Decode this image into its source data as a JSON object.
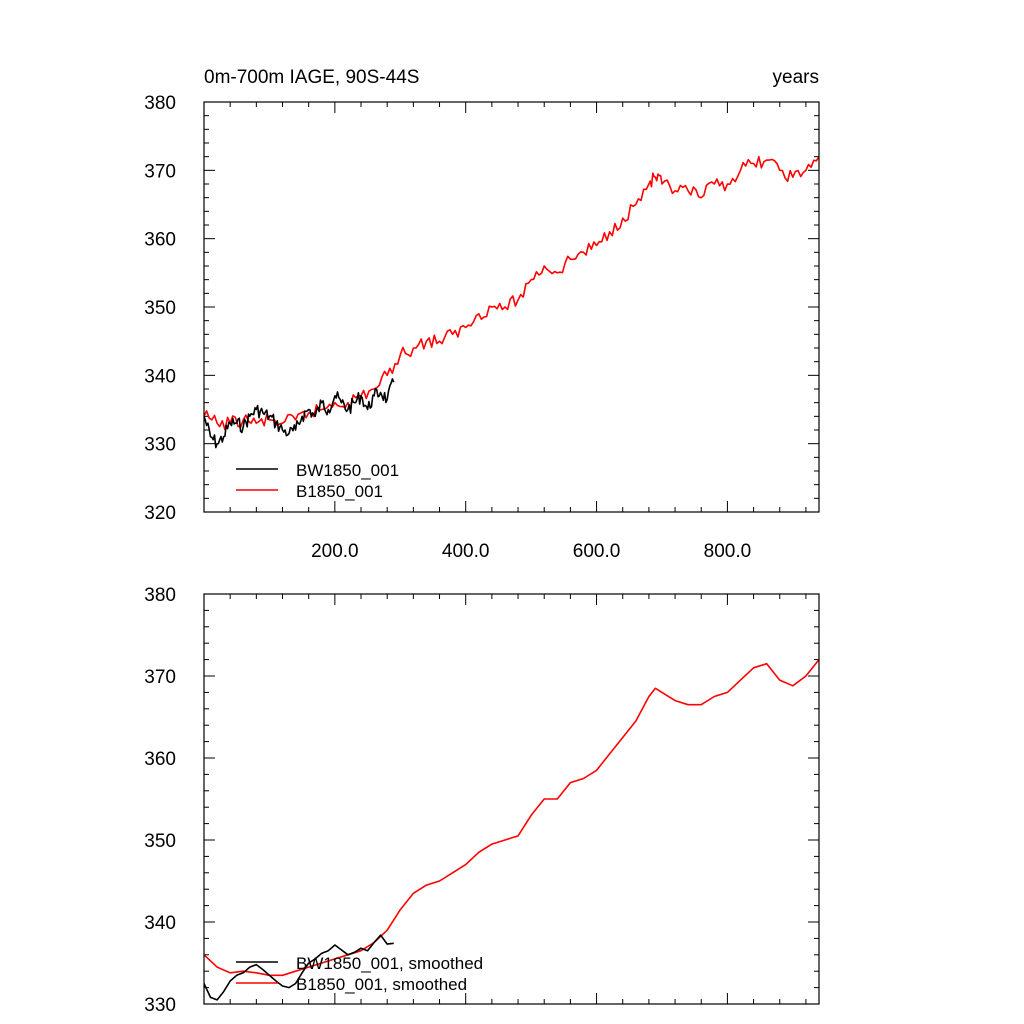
{
  "chart_data": [
    {
      "type": "line",
      "title_left": "0m-700m IAGE, 90S-44S",
      "title_right": "years",
      "xlim": [
        0,
        940
      ],
      "ylim": [
        320,
        380
      ],
      "x_ticks": [
        200,
        400,
        600,
        800
      ],
      "x_tick_labels": [
        "200.0",
        "400.0",
        "600.0",
        "800.0"
      ],
      "y_ticks": [
        320,
        330,
        340,
        350,
        360,
        370,
        380
      ],
      "y_tick_labels": [
        "320",
        "330",
        "340",
        "350",
        "360",
        "370",
        "380"
      ],
      "legend_position": "bottom-left",
      "series": [
        {
          "name": "BW1850_001",
          "color": "#000000",
          "x": [
            0,
            10,
            20,
            30,
            40,
            50,
            60,
            70,
            80,
            90,
            100,
            110,
            120,
            130,
            140,
            150,
            160,
            170,
            180,
            190,
            200,
            210,
            220,
            230,
            240,
            250,
            260,
            270,
            280,
            290
          ],
          "y": [
            334,
            331,
            330,
            331,
            333,
            333,
            332.5,
            334,
            335,
            334.5,
            334,
            333,
            332,
            331.5,
            332,
            334,
            335,
            334,
            336,
            335,
            337,
            336,
            335,
            336,
            337,
            335,
            337,
            337.5,
            336.5,
            339
          ]
        },
        {
          "name": "B1850_001",
          "color": "#ff0000",
          "x": [
            0,
            20,
            40,
            60,
            80,
            100,
            120,
            140,
            160,
            180,
            200,
            220,
            240,
            260,
            280,
            300,
            320,
            340,
            360,
            380,
            400,
            420,
            440,
            460,
            480,
            500,
            520,
            540,
            560,
            580,
            600,
            620,
            640,
            660,
            680,
            690,
            700,
            720,
            740,
            760,
            780,
            800,
            820,
            840,
            860,
            880,
            900,
            920,
            940
          ],
          "y": [
            334,
            333,
            333,
            333.5,
            333,
            333.5,
            333,
            333.5,
            334.5,
            335,
            336,
            336,
            337,
            338,
            340,
            343,
            344,
            345,
            345,
            346,
            347,
            349,
            350,
            350,
            351,
            354,
            356,
            355,
            357,
            358,
            359,
            361,
            363,
            365,
            368,
            369,
            368,
            367,
            367,
            366,
            368,
            368,
            370,
            371,
            371.5,
            370,
            369,
            370,
            372
          ]
        }
      ]
    },
    {
      "type": "line",
      "xlim": [
        0,
        940
      ],
      "ylim": [
        330,
        380
      ],
      "x_ticks": [
        200,
        400,
        600,
        800
      ],
      "y_ticks": [
        330,
        340,
        350,
        360,
        370,
        380
      ],
      "y_tick_labels": [
        "330",
        "340",
        "350",
        "360",
        "370",
        "380"
      ],
      "legend_position": "bottom-left",
      "series": [
        {
          "name": "BW1850_001, smoothed",
          "color": "#000000",
          "x": [
            0,
            10,
            20,
            30,
            40,
            50,
            60,
            70,
            80,
            90,
            100,
            110,
            120,
            130,
            140,
            150,
            160,
            170,
            180,
            190,
            200,
            210,
            220,
            230,
            240,
            250,
            260,
            270,
            280,
            290
          ],
          "y": [
            332.5,
            330.8,
            330.5,
            331.5,
            332.8,
            333.5,
            333.8,
            334.5,
            334.8,
            334.2,
            333.5,
            332.8,
            332.2,
            332.0,
            332.5,
            333.8,
            335.0,
            335.5,
            336.2,
            336.5,
            337.2,
            336.6,
            336.0,
            336.3,
            336.8,
            336.5,
            337.5,
            338.4,
            337.3,
            337.4
          ]
        },
        {
          "name": "B1850_001, smoothed",
          "color": "#ff0000",
          "x": [
            0,
            20,
            40,
            60,
            80,
            100,
            120,
            140,
            160,
            180,
            200,
            220,
            240,
            260,
            280,
            300,
            320,
            340,
            360,
            380,
            400,
            420,
            440,
            460,
            480,
            500,
            520,
            540,
            560,
            580,
            600,
            620,
            640,
            660,
            680,
            690,
            700,
            720,
            740,
            760,
            780,
            800,
            820,
            840,
            860,
            880,
            900,
            920,
            940
          ],
          "y": [
            336.0,
            334.5,
            333.8,
            334.0,
            333.8,
            333.5,
            333.5,
            334.0,
            334.5,
            335.0,
            335.5,
            336.0,
            336.5,
            337.5,
            339.0,
            341.5,
            343.5,
            344.5,
            345.0,
            346.0,
            347.0,
            348.5,
            349.5,
            350.0,
            350.5,
            353.0,
            355.0,
            355.0,
            357.0,
            357.5,
            358.5,
            360.5,
            362.5,
            364.5,
            367.5,
            368.5,
            368.0,
            367.0,
            366.5,
            366.5,
            367.5,
            368.0,
            369.5,
            371.0,
            371.5,
            369.5,
            368.8,
            370.0,
            372.0
          ]
        }
      ]
    }
  ]
}
